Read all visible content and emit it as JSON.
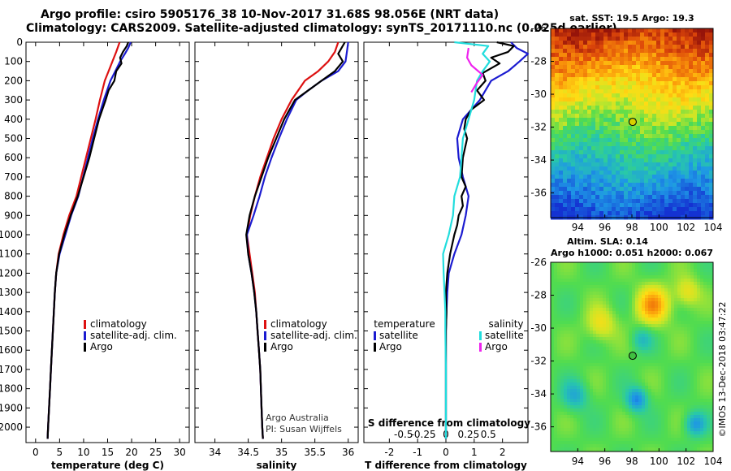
{
  "header": {
    "line1": "Argo profile: csiro 5905176_38 10-Nov-2017 31.68S 98.056E (NRT data)",
    "line2": "Climatology: CARS2009. Satellite-adjusted climatology: synTS_20171110.nc (0.025d earlier)"
  },
  "colors": {
    "climatology": "#dd1111",
    "satellite": "#1b1bd0",
    "argo": "#000000",
    "sal_satellite": "#22dddd",
    "sal_argo": "#ee22ee"
  },
  "chart_data": [
    {
      "type": "line",
      "title": "",
      "xlabel": "temperature (deg C)",
      "ylabel": "",
      "xlim": [
        -2,
        32
      ],
      "ylim": [
        2080,
        0
      ],
      "xticks": [
        0,
        5,
        10,
        15,
        20,
        25,
        30
      ],
      "yticks": [
        0,
        100,
        200,
        300,
        400,
        500,
        600,
        700,
        800,
        900,
        1000,
        1100,
        1200,
        1300,
        1400,
        1500,
        1600,
        1700,
        1800,
        1900,
        2000
      ],
      "legend": [
        "climatology",
        "satellite-adj. clim.",
        "Argo"
      ],
      "series": [
        {
          "name": "climatology",
          "color_key": "climatology",
          "points": [
            [
              17.5,
              0
            ],
            [
              16.8,
              50
            ],
            [
              16.0,
              100
            ],
            [
              15.2,
              150
            ],
            [
              14.4,
              200
            ],
            [
              13.4,
              300
            ],
            [
              12.5,
              400
            ],
            [
              11.5,
              500
            ],
            [
              10.5,
              600
            ],
            [
              9.5,
              700
            ],
            [
              8.5,
              800
            ],
            [
              7.0,
              900
            ],
            [
              5.8,
              1000
            ],
            [
              4.8,
              1100
            ],
            [
              4.3,
              1200
            ],
            [
              4.0,
              1300
            ],
            [
              3.8,
              1400
            ],
            [
              3.6,
              1500
            ],
            [
              3.4,
              1600
            ],
            [
              3.2,
              1700
            ],
            [
              3.0,
              1800
            ],
            [
              2.8,
              1900
            ],
            [
              2.6,
              2000
            ],
            [
              2.5,
              2060
            ]
          ]
        },
        {
          "name": "satellite-adj. clim.",
          "color_key": "satellite",
          "points": [
            [
              19.8,
              0
            ],
            [
              19.3,
              30
            ],
            [
              18.6,
              60
            ],
            [
              17.6,
              100
            ],
            [
              16.6,
              150
            ],
            [
              15.6,
              200
            ],
            [
              14.2,
              300
            ],
            [
              13.0,
              400
            ],
            [
              11.9,
              500
            ],
            [
              10.9,
              600
            ],
            [
              9.9,
              700
            ],
            [
              8.9,
              800
            ],
            [
              7.4,
              900
            ],
            [
              6.2,
              1000
            ],
            [
              5.0,
              1100
            ],
            [
              4.3,
              1200
            ],
            [
              4.0,
              1300
            ],
            [
              3.8,
              1400
            ],
            [
              3.6,
              1500
            ],
            [
              3.4,
              1600
            ],
            [
              3.2,
              1700
            ],
            [
              3.0,
              1800
            ],
            [
              2.8,
              1900
            ],
            [
              2.6,
              2000
            ],
            [
              2.5,
              2060
            ]
          ]
        },
        {
          "name": "Argo",
          "color_key": "argo",
          "points": [
            [
              19.3,
              0
            ],
            [
              19.0,
              20
            ],
            [
              18.2,
              50
            ],
            [
              17.6,
              80
            ],
            [
              17.9,
              110
            ],
            [
              16.8,
              150
            ],
            [
              16.4,
              200
            ],
            [
              15.2,
              250
            ],
            [
              14.6,
              300
            ],
            [
              13.2,
              400
            ],
            [
              12.2,
              500
            ],
            [
              11.2,
              600
            ],
            [
              10.0,
              700
            ],
            [
              8.8,
              800
            ],
            [
              7.3,
              900
            ],
            [
              6.0,
              1000
            ],
            [
              4.9,
              1100
            ],
            [
              4.3,
              1200
            ],
            [
              4.0,
              1300
            ],
            [
              3.8,
              1400
            ],
            [
              3.6,
              1500
            ],
            [
              3.4,
              1600
            ],
            [
              3.2,
              1700
            ],
            [
              3.0,
              1800
            ],
            [
              2.8,
              1900
            ],
            [
              2.6,
              2000
            ],
            [
              2.5,
              2060
            ]
          ]
        }
      ]
    },
    {
      "type": "line",
      "title": "",
      "xlabel": "salinity",
      "ylabel": "",
      "xlim": [
        33.7,
        36.15
      ],
      "ylim": [
        2080,
        0
      ],
      "xticks": [
        34,
        34.5,
        35,
        35.5,
        36
      ],
      "legend": [
        "climatology",
        "satellite-adj. clim.",
        "Argo"
      ],
      "annotation": [
        "Argo Australia",
        "PI: Susan Wijffels"
      ],
      "series": [
        {
          "name": "climatology",
          "color_key": "climatology",
          "points": [
            [
              35.85,
              0
            ],
            [
              35.8,
              50
            ],
            [
              35.7,
              100
            ],
            [
              35.55,
              150
            ],
            [
              35.35,
              200
            ],
            [
              35.15,
              300
            ],
            [
              35.0,
              400
            ],
            [
              34.88,
              500
            ],
            [
              34.78,
              600
            ],
            [
              34.68,
              700
            ],
            [
              34.6,
              800
            ],
            [
              34.53,
              900
            ],
            [
              34.48,
              1000
            ],
            [
              34.52,
              1100
            ],
            [
              34.56,
              1200
            ],
            [
              34.6,
              1300
            ],
            [
              34.62,
              1400
            ],
            [
              34.64,
              1500
            ],
            [
              34.66,
              1600
            ],
            [
              34.68,
              1700
            ],
            [
              34.69,
              1800
            ],
            [
              34.7,
              1900
            ],
            [
              34.71,
              2000
            ],
            [
              34.72,
              2060
            ]
          ]
        },
        {
          "name": "satellite-adj. clim.",
          "color_key": "satellite",
          "points": [
            [
              36.0,
              0
            ],
            [
              35.98,
              50
            ],
            [
              35.96,
              100
            ],
            [
              35.85,
              150
            ],
            [
              35.6,
              200
            ],
            [
              35.4,
              250
            ],
            [
              35.22,
              300
            ],
            [
              35.08,
              400
            ],
            [
              34.96,
              500
            ],
            [
              34.85,
              600
            ],
            [
              34.75,
              700
            ],
            [
              34.67,
              800
            ],
            [
              34.58,
              900
            ],
            [
              34.48,
              1000
            ],
            [
              34.5,
              1100
            ],
            [
              34.55,
              1200
            ],
            [
              34.59,
              1300
            ],
            [
              34.62,
              1400
            ],
            [
              34.64,
              1500
            ],
            [
              34.66,
              1600
            ],
            [
              34.68,
              1700
            ],
            [
              34.69,
              1800
            ],
            [
              34.7,
              1900
            ],
            [
              34.71,
              2000
            ],
            [
              34.72,
              2060
            ]
          ]
        },
        {
          "name": "Argo",
          "color_key": "argo",
          "points": [
            [
              35.95,
              0
            ],
            [
              35.9,
              30
            ],
            [
              35.85,
              60
            ],
            [
              35.92,
              100
            ],
            [
              35.8,
              150
            ],
            [
              35.6,
              200
            ],
            [
              35.4,
              250
            ],
            [
              35.2,
              300
            ],
            [
              35.04,
              400
            ],
            [
              34.92,
              500
            ],
            [
              34.8,
              600
            ],
            [
              34.7,
              700
            ],
            [
              34.6,
              800
            ],
            [
              34.52,
              900
            ],
            [
              34.47,
              1000
            ],
            [
              34.5,
              1100
            ],
            [
              34.55,
              1200
            ],
            [
              34.59,
              1300
            ],
            [
              34.62,
              1400
            ],
            [
              34.64,
              1500
            ],
            [
              34.66,
              1600
            ],
            [
              34.68,
              1700
            ],
            [
              34.69,
              1800
            ],
            [
              34.7,
              1900
            ],
            [
              34.71,
              2000
            ],
            [
              34.72,
              2060
            ]
          ]
        }
      ]
    },
    {
      "type": "line",
      "title": "",
      "xlabel": "T difference from climatology",
      "xlabel_top": "S difference from climatology",
      "ylabel": "",
      "xlim": [
        -2.9,
        2.9
      ],
      "ylim": [
        2080,
        0
      ],
      "xticks": [
        -2,
        -1,
        0,
        1,
        2
      ],
      "xticks_top": [
        "-0.5",
        "-0.25",
        "0",
        "0.25",
        "0.5"
      ],
      "legend_left_title": "temperature",
      "legend_right_title": "salinity",
      "legend": [
        "satellite",
        "Argo"
      ],
      "series": [
        {
          "name": "temperature satellite",
          "color_key": "satellite",
          "points": [
            [
              2.3,
              0
            ],
            [
              2.5,
              30
            ],
            [
              2.9,
              60
            ],
            [
              2.6,
              100
            ],
            [
              2.2,
              150
            ],
            [
              1.6,
              200
            ],
            [
              1.2,
              300
            ],
            [
              0.6,
              400
            ],
            [
              0.4,
              500
            ],
            [
              0.45,
              600
            ],
            [
              0.6,
              700
            ],
            [
              0.8,
              800
            ],
            [
              0.7,
              900
            ],
            [
              0.55,
              1000
            ],
            [
              0.3,
              1100
            ],
            [
              0.1,
              1200
            ],
            [
              0.05,
              1300
            ],
            [
              0.02,
              1400
            ],
            [
              0.0,
              1500
            ],
            [
              0.0,
              1700
            ],
            [
              0.0,
              2060
            ]
          ]
        },
        {
          "name": "temperature Argo",
          "color_key": "argo",
          "points": [
            [
              1.8,
              0
            ],
            [
              2.4,
              20
            ],
            [
              2.2,
              50
            ],
            [
              1.6,
              80
            ],
            [
              1.9,
              110
            ],
            [
              1.3,
              160
            ],
            [
              1.4,
              200
            ],
            [
              1.1,
              250
            ],
            [
              1.35,
              300
            ],
            [
              0.9,
              350
            ],
            [
              0.7,
              400
            ],
            [
              0.65,
              450
            ],
            [
              0.75,
              500
            ],
            [
              0.6,
              600
            ],
            [
              0.55,
              700
            ],
            [
              0.7,
              750
            ],
            [
              0.55,
              800
            ],
            [
              0.6,
              850
            ],
            [
              0.45,
              900
            ],
            [
              0.4,
              950
            ],
            [
              0.3,
              1000
            ],
            [
              0.15,
              1100
            ],
            [
              0.05,
              1200
            ],
            [
              0.0,
              1300
            ],
            [
              0.02,
              1400
            ],
            [
              0.0,
              1500
            ],
            [
              0.0,
              1700
            ],
            [
              0.0,
              2060
            ]
          ]
        },
        {
          "name": "salinity satellite",
          "color_key": "sal_satellite",
          "points": [
            [
              0.3,
              0
            ],
            [
              1.5,
              20
            ],
            [
              1.3,
              60
            ],
            [
              1.55,
              100
            ],
            [
              1.3,
              150
            ],
            [
              1.1,
              200
            ],
            [
              1.0,
              300
            ],
            [
              0.8,
              400
            ],
            [
              0.6,
              500
            ],
            [
              0.55,
              600
            ],
            [
              0.5,
              700
            ],
            [
              0.3,
              800
            ],
            [
              0.25,
              900
            ],
            [
              0.1,
              1000
            ],
            [
              -0.1,
              1100
            ],
            [
              -0.08,
              1200
            ],
            [
              -0.05,
              1300
            ],
            [
              -0.02,
              1400
            ],
            [
              -0.02,
              1500
            ],
            [
              0.0,
              1700
            ],
            [
              0.0,
              2060
            ]
          ]
        },
        {
          "name": "salinity Argo",
          "color_key": "sal_argo",
          "points": [
            [
              0.8,
              30
            ],
            [
              0.75,
              80
            ],
            [
              0.9,
              120
            ],
            [
              1.3,
              170
            ],
            [
              1.1,
              210
            ],
            [
              0.9,
              260
            ]
          ]
        }
      ]
    },
    {
      "type": "heatmap",
      "title": "sat. SST: 19.5 Argo: 19.3",
      "xlabel": "",
      "ylabel": "",
      "xlim": [
        92,
        104
      ],
      "ylim": [
        -37.5,
        -26
      ],
      "xticks": [
        94,
        96,
        98,
        100,
        102,
        104
      ],
      "yticks": [
        -26,
        -28,
        -30,
        -32,
        -34,
        -36
      ],
      "float_position": [
        98.056,
        -31.68
      ]
    },
    {
      "type": "heatmap",
      "title": "Altim. SLA: 0.14",
      "subtitle": "Argo h1000: 0.051 h2000: 0.067",
      "xlabel": "",
      "ylabel": "",
      "xlim": [
        92,
        104
      ],
      "ylim": [
        -37.5,
        -26
      ],
      "xticks": [
        94,
        96,
        98,
        100,
        102,
        104
      ],
      "yticks": [
        -26,
        -28,
        -30,
        -32,
        -34,
        -36
      ],
      "float_position": [
        98.056,
        -31.68
      ],
      "watermark": "©IMOS 13-Dec-2018 03:47:22"
    }
  ]
}
